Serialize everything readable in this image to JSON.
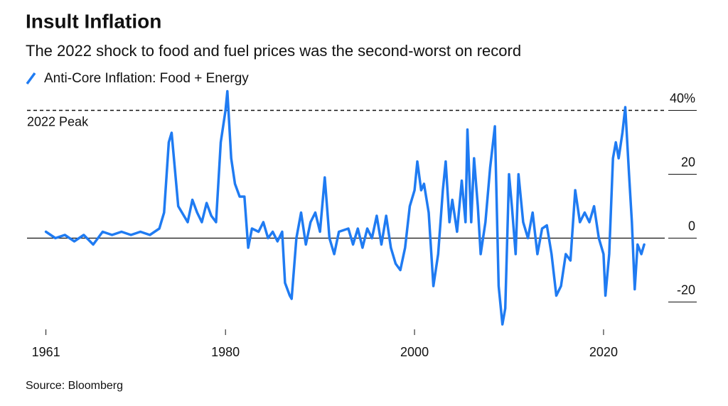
{
  "chart_data": {
    "type": "line",
    "title": "Insult Inflation",
    "subtitle": "The 2022 shock to food and fuel prices was the second-worst on record",
    "source": "Source: Bloomberg",
    "annotations": [
      {
        "text": "2022 Peak",
        "value": 40
      }
    ],
    "xlim": [
      1959,
      2027
    ],
    "xticks": [
      1961,
      1980,
      2000,
      2020
    ],
    "ylim": [
      -29,
      47
    ],
    "yticks": [
      {
        "value": 40,
        "label": "40%"
      },
      20,
      0,
      -20
    ],
    "series": [
      {
        "name": "Anti-Core Inflation: Food + Energy",
        "color": "#1f7bf2",
        "x": [
          1961,
          1962,
          1963,
          1964,
          1965,
          1966,
          1967,
          1968,
          1969,
          1970,
          1971,
          1972,
          1973,
          1973.5,
          1974,
          1974.3,
          1975,
          1976,
          1976.5,
          1977,
          1977.5,
          1978,
          1978.5,
          1979,
          1979.5,
          1980,
          1980.2,
          1980.6,
          1981,
          1981.5,
          1982,
          1982.4,
          1982.8,
          1983.5,
          1984,
          1984.5,
          1985,
          1985.5,
          1986,
          1986.3,
          1986.8,
          1987,
          1987.5,
          1988,
          1988.5,
          1989,
          1989.5,
          1990,
          1990.5,
          1991,
          1991.5,
          1992,
          1993,
          1993.5,
          1994,
          1994.5,
          1995,
          1995.5,
          1996,
          1996.5,
          1997,
          1997.5,
          1998,
          1998.5,
          1999,
          1999.5,
          2000,
          2000.3,
          2000.7,
          2001,
          2001.5,
          2002,
          2002.5,
          2003,
          2003.3,
          2003.7,
          2004,
          2004.5,
          2005,
          2005.4,
          2005.6,
          2006,
          2006.3,
          2006.7,
          2007,
          2007.5,
          2008,
          2008.5,
          2008.9,
          2009.3,
          2009.6,
          2010,
          2010.3,
          2010.7,
          2011,
          2011.5,
          2012,
          2012.5,
          2013,
          2013.5,
          2014,
          2014.5,
          2015,
          2015.5,
          2016,
          2016.5,
          2017,
          2017.5,
          2018,
          2018.5,
          2019,
          2019.5,
          2020,
          2020.2,
          2020.6,
          2021,
          2021.3,
          2021.6,
          2022,
          2022.3,
          2022.7,
          2023,
          2023.3,
          2023.6,
          2024,
          2024.3
        ],
        "values": [
          2,
          0,
          1,
          -1,
          1,
          -2,
          2,
          1,
          2,
          1,
          2,
          1,
          3,
          8,
          30,
          33,
          10,
          5,
          12,
          8,
          5,
          11,
          7,
          5,
          30,
          40,
          46,
          25,
          17,
          13,
          13,
          -3,
          3,
          2,
          5,
          0,
          2,
          -1,
          2,
          -14,
          -18,
          -19,
          0,
          8,
          -2,
          5,
          8,
          2,
          19,
          0,
          -5,
          2,
          3,
          -2,
          3,
          -3,
          3,
          0,
          7,
          -2,
          7,
          -3,
          -8,
          -10,
          -3,
          10,
          15,
          24,
          15,
          17,
          8,
          -15,
          -5,
          15,
          24,
          5,
          12,
          2,
          18,
          5,
          34,
          5,
          25,
          10,
          -5,
          5,
          22,
          35,
          -15,
          -27,
          -22,
          20,
          10,
          -5,
          20,
          5,
          0,
          8,
          -5,
          3,
          4,
          -5,
          -18,
          -15,
          -5,
          -7,
          15,
          5,
          8,
          5,
          10,
          0,
          -5,
          -18,
          -5,
          25,
          30,
          25,
          33,
          41,
          20,
          5,
          -16,
          -2,
          -5,
          -2
        ]
      }
    ]
  }
}
